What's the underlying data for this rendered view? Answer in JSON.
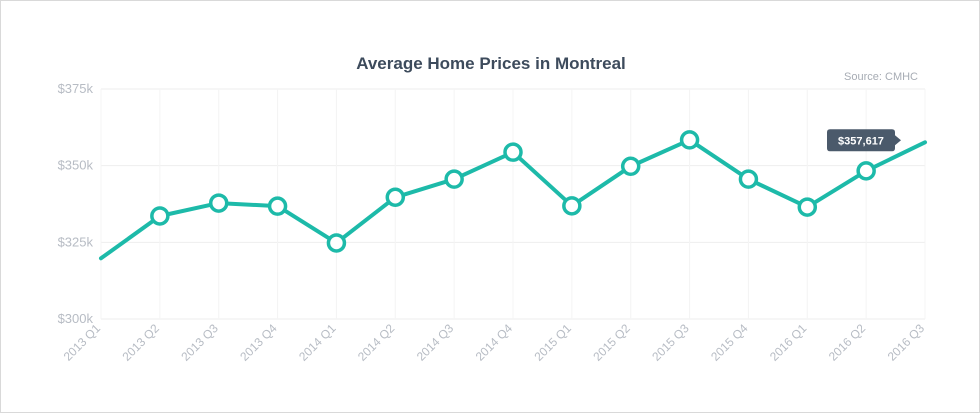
{
  "chart_data": {
    "type": "line",
    "title": "Average Home Prices in Montreal",
    "source": "Source: CMHC",
    "xlabel": "",
    "ylabel": "",
    "categories": [
      "2013 Q1",
      "2013 Q2",
      "2013 Q3",
      "2013 Q4",
      "2014 Q1",
      "2014 Q2",
      "2014 Q3",
      "2014 Q4",
      "2015 Q1",
      "2015 Q2",
      "2015 Q3",
      "2015 Q4",
      "2016 Q1",
      "2016 Q2",
      "2016 Q3"
    ],
    "values": [
      319800,
      333600,
      337800,
      336800,
      324800,
      339700,
      345600,
      354400,
      336900,
      349800,
      358400,
      345600,
      336500,
      348300,
      357617
    ],
    "ylim": [
      300000,
      375000
    ],
    "y_ticks": [
      {
        "value": 375000,
        "label": "$375k"
      },
      {
        "value": 350000,
        "label": "$350k"
      },
      {
        "value": 325000,
        "label": "$325k"
      },
      {
        "value": 300000,
        "label": "$300k"
      }
    ],
    "grid": true,
    "marker_from_index": 1,
    "marker_to_index": 13,
    "tooltip": {
      "index": 14,
      "label": "$357,617"
    },
    "colors": {
      "line": "#1dbaa9",
      "marker_fill": "#ffffff",
      "grid": "#eeeeee",
      "tooltip_bg": "#4b5a6b"
    }
  }
}
